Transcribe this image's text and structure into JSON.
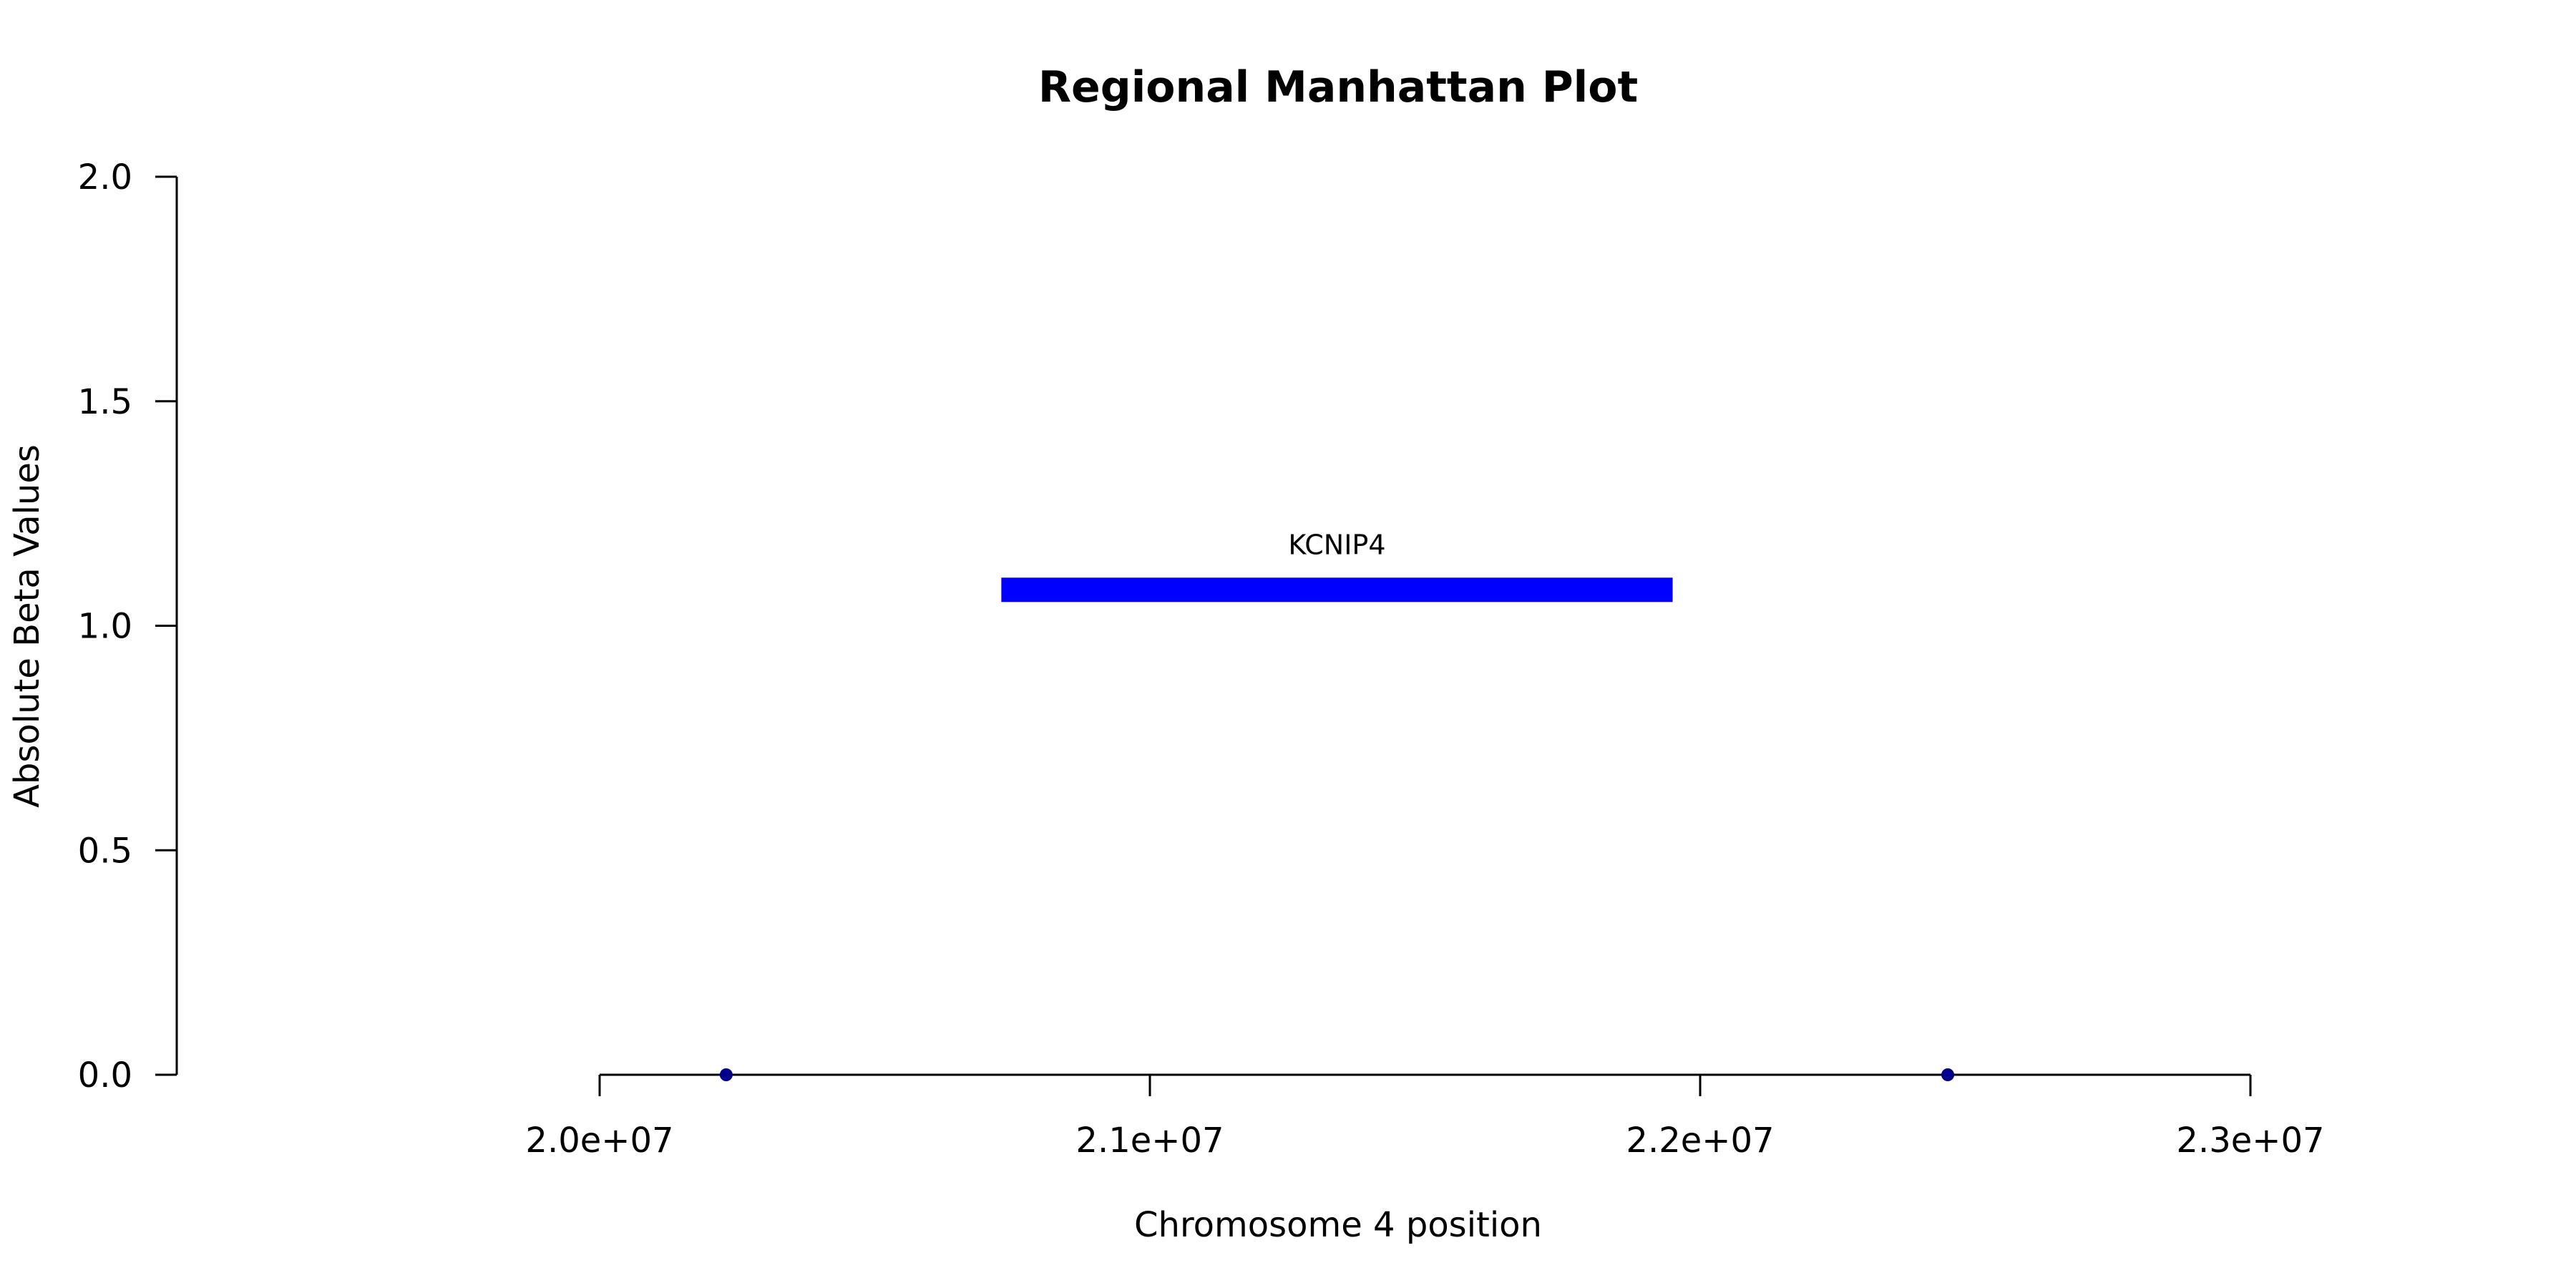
{
  "chart_data": {
    "type": "scatter",
    "title": "Regional Manhattan Plot",
    "xlabel": "Chromosome 4 position",
    "ylabel": "Absolute Beta Values",
    "xlim": [
      20000000,
      23000000
    ],
    "ylim": [
      0,
      2
    ],
    "x_ticks": [
      20000000,
      21000000,
      22000000,
      23000000
    ],
    "x_tick_labels": [
      "2.0e+07",
      "2.1e+07",
      "2.2e+07",
      "2.3e+07"
    ],
    "y_ticks": [
      0,
      0.5,
      1,
      1.5,
      2
    ],
    "y_tick_labels": [
      "0.0",
      "0.5",
      "1.0",
      "1.5",
      "2.0"
    ],
    "grid": false,
    "points": [
      {
        "x": 20230000,
        "y": 0
      },
      {
        "x": 22450000,
        "y": 0
      }
    ],
    "point_color": "#00008b",
    "genes": [
      {
        "name": "KCNIP4",
        "start": 20730000,
        "end": 21950000,
        "y": 1.08
      }
    ],
    "gene_color": "#0000ff"
  }
}
